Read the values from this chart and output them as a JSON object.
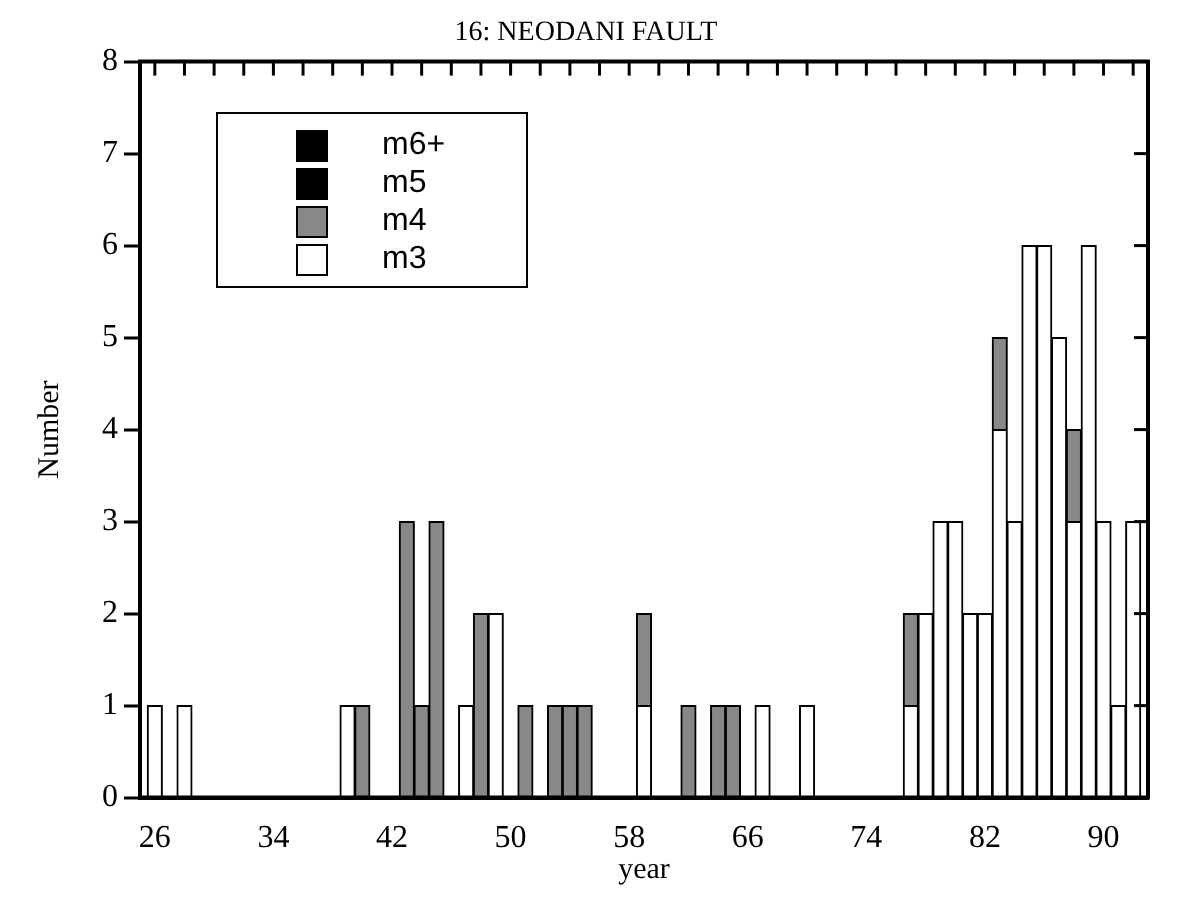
{
  "chart_data": {
    "type": "bar",
    "stacked": true,
    "title": "16: NEODANI FAULT",
    "xlabel": "year",
    "ylabel": "Number",
    "x": [
      26,
      27,
      28,
      29,
      30,
      31,
      32,
      33,
      34,
      35,
      36,
      37,
      38,
      39,
      40,
      41,
      42,
      43,
      44,
      45,
      46,
      47,
      48,
      49,
      50,
      51,
      52,
      53,
      54,
      55,
      56,
      57,
      58,
      59,
      60,
      61,
      62,
      63,
      64,
      65,
      66,
      67,
      68,
      69,
      70,
      71,
      72,
      73,
      74,
      75,
      76,
      77,
      78,
      79,
      80,
      81,
      82,
      83,
      84,
      85,
      86,
      87,
      88,
      89,
      90,
      91,
      92
    ],
    "series": [
      {
        "name": "m3",
        "color": "#ffffff",
        "values": [
          1,
          0,
          1,
          0,
          0,
          0,
          0,
          0,
          0,
          0,
          0,
          0,
          0,
          1,
          0,
          0,
          0,
          0,
          0,
          0,
          0,
          1,
          0,
          2,
          0,
          0,
          0,
          0,
          0,
          0,
          0,
          0,
          0,
          1,
          0,
          0,
          0,
          0,
          0,
          0,
          0,
          1,
          0,
          0,
          1,
          0,
          0,
          0,
          0,
          0,
          0,
          1,
          2,
          3,
          3,
          2,
          2,
          4,
          3,
          6,
          6,
          5,
          3,
          6,
          3,
          1,
          3
        ]
      },
      {
        "name": "m4",
        "color": "#888888",
        "values": [
          0,
          0,
          0,
          0,
          0,
          0,
          0,
          0,
          0,
          0,
          0,
          0,
          0,
          0,
          1,
          0,
          0,
          3,
          1,
          3,
          0,
          0,
          2,
          0,
          0,
          1,
          0,
          1,
          1,
          1,
          0,
          0,
          0,
          1,
          0,
          0,
          1,
          0,
          1,
          1,
          0,
          0,
          0,
          0,
          0,
          0,
          0,
          0,
          0,
          0,
          0,
          1,
          0,
          0,
          0,
          0,
          0,
          1,
          0,
          0,
          0,
          0,
          1,
          0,
          0,
          0,
          0
        ]
      },
      {
        "name": "m5",
        "color": "#000000",
        "values": [
          0,
          0,
          0,
          0,
          0,
          0,
          0,
          0,
          0,
          0,
          0,
          0,
          0,
          0,
          0,
          0,
          0,
          0,
          0,
          0,
          0,
          0,
          0,
          0,
          0,
          0,
          0,
          0,
          0,
          0,
          0,
          0,
          0,
          0,
          0,
          0,
          0,
          0,
          0,
          0,
          0,
          0,
          0,
          0,
          0,
          0,
          0,
          0,
          0,
          0,
          0,
          0,
          0,
          0,
          0,
          0,
          0,
          0,
          0,
          0,
          0,
          0,
          0,
          0,
          0,
          0,
          0
        ]
      },
      {
        "name": "m6+",
        "color": "#000000",
        "values": [
          0,
          0,
          0,
          0,
          0,
          0,
          0,
          0,
          0,
          0,
          0,
          0,
          0,
          0,
          0,
          0,
          0,
          0,
          0,
          0,
          0,
          0,
          0,
          0,
          0,
          0,
          0,
          0,
          0,
          0,
          0,
          0,
          0,
          0,
          0,
          0,
          0,
          0,
          0,
          0,
          0,
          0,
          0,
          0,
          0,
          0,
          0,
          0,
          0,
          0,
          0,
          0,
          0,
          0,
          0,
          0,
          0,
          0,
          0,
          0,
          0,
          0,
          0,
          0,
          0,
          0,
          0
        ]
      }
    ],
    "xlim": [
      25,
      93
    ],
    "xticks": [
      26,
      {
        "value": 28,
        "label": null
      },
      {
        "value": 30,
        "label": null
      },
      {
        "value": 32,
        "label": null
      },
      34,
      {
        "value": 36,
        "label": null
      },
      {
        "value": 38,
        "label": null
      },
      {
        "value": 40,
        "label": null
      },
      42,
      {
        "value": 44,
        "label": null
      },
      {
        "value": 46,
        "label": null
      },
      {
        "value": 48,
        "label": null
      },
      50,
      {
        "value": 52,
        "label": null
      },
      {
        "value": 54,
        "label": null
      },
      {
        "value": 56,
        "label": null
      },
      58,
      {
        "value": 60,
        "label": null
      },
      {
        "value": 62,
        "label": null
      },
      {
        "value": 64,
        "label": null
      },
      66,
      {
        "value": 68,
        "label": null
      },
      {
        "value": 70,
        "label": null
      },
      {
        "value": 72,
        "label": null
      },
      74,
      {
        "value": 76,
        "label": null
      },
      {
        "value": 78,
        "label": null
      },
      {
        "value": 80,
        "label": null
      },
      82,
      {
        "value": 84,
        "label": null
      },
      {
        "value": 86,
        "label": null
      },
      {
        "value": 88,
        "label": null
      },
      90,
      {
        "value": 92,
        "label": null
      }
    ],
    "ylim": [
      0,
      8
    ],
    "yticks": [
      0,
      1,
      2,
      3,
      4,
      5,
      6,
      7,
      8
    ],
    "grid": false,
    "legend": "top left"
  }
}
